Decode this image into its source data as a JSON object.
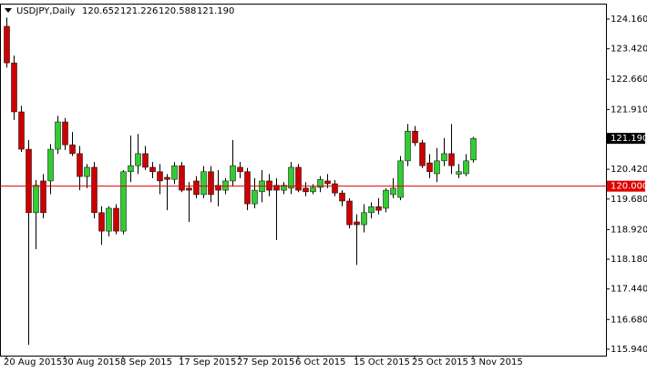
{
  "chart_data": {
    "type": "candlestick",
    "title": "USDJPY,Daily",
    "ohlc_labels": [
      "120.652",
      "121.226",
      "120.588",
      "121.190"
    ],
    "categories": [
      "20 Aug 2015",
      null,
      null,
      null,
      null,
      null,
      null,
      null,
      "30 Aug 2015",
      null,
      null,
      null,
      null,
      null,
      null,
      null,
      "8 Sep 2015",
      null,
      null,
      null,
      null,
      null,
      null,
      null,
      "17 Sep 2015",
      null,
      null,
      null,
      null,
      null,
      null,
      null,
      "27 Sep 2015",
      null,
      null,
      null,
      null,
      null,
      null,
      null,
      "6 Oct 2015",
      null,
      null,
      null,
      null,
      null,
      null,
      null,
      "15 Oct 2015",
      null,
      null,
      null,
      null,
      null,
      null,
      null,
      "25 Oct 2015",
      null,
      null,
      null,
      null,
      null,
      null,
      null,
      "3 Nov 2015"
    ],
    "open": [
      123.98,
      123.07,
      121.85,
      120.92,
      119.34,
      120.13,
      120.13,
      120.92,
      121.6,
      121.03,
      120.81,
      120.24,
      120.47,
      119.34,
      118.88,
      119.45,
      118.88,
      120.36,
      120.51,
      120.81,
      120.47,
      120.36,
      120.22,
      120.17,
      120.51,
      119.95,
      120.13,
      119.79,
      120.36,
      120.02,
      119.9,
      120.13,
      120.47,
      120.36,
      119.56,
      119.86,
      120.13,
      120.02,
      119.9,
      119.95,
      120.47,
      119.95,
      119.86,
      119.97,
      120.13,
      120.06,
      119.83,
      119.63,
      119.11,
      119.04,
      119.34,
      119.49,
      119.45,
      119.79,
      119.72,
      120.63,
      121.37,
      121.08,
      120.58,
      120.31,
      120.63,
      120.81,
      120.3,
      120.31,
      120.652
    ],
    "high": [
      124.2,
      123.25,
      122.0,
      121.15,
      120.15,
      120.3,
      121.05,
      121.75,
      121.7,
      121.35,
      121.0,
      120.55,
      120.6,
      119.5,
      119.5,
      119.55,
      120.4,
      121.26,
      121.3,
      121.0,
      120.6,
      120.55,
      120.3,
      120.6,
      120.6,
      120.1,
      120.25,
      120.5,
      120.5,
      120.4,
      120.2,
      121.15,
      120.6,
      120.45,
      120.2,
      120.4,
      120.3,
      120.2,
      120.1,
      120.6,
      120.55,
      120.1,
      120.05,
      120.25,
      120.3,
      120.15,
      119.9,
      119.7,
      119.3,
      119.55,
      119.6,
      119.7,
      119.95,
      120.2,
      120.75,
      121.55,
      121.5,
      121.15,
      120.8,
      120.95,
      121.2,
      121.55,
      120.55,
      120.8,
      121.226
    ],
    "low": [
      122.95,
      121.65,
      120.85,
      116.05,
      118.43,
      119.2,
      119.8,
      120.8,
      120.9,
      120.75,
      119.9,
      119.95,
      119.2,
      118.54,
      118.75,
      118.8,
      118.8,
      120.1,
      120.3,
      120.4,
      120.2,
      119.8,
      119.4,
      120.05,
      119.85,
      119.11,
      119.7,
      119.7,
      119.6,
      119.5,
      119.8,
      120.0,
      120.2,
      119.4,
      119.45,
      119.6,
      119.75,
      118.66,
      119.8,
      119.8,
      119.85,
      119.75,
      119.8,
      119.85,
      119.95,
      119.75,
      119.5,
      118.95,
      118.04,
      118.85,
      119.2,
      119.3,
      119.35,
      119.7,
      119.65,
      120.5,
      121.0,
      120.45,
      120.2,
      120.1,
      120.5,
      120.3,
      120.2,
      120.25,
      120.588
    ],
    "close": [
      123.07,
      121.85,
      120.92,
      119.34,
      120.02,
      119.34,
      120.92,
      121.6,
      121.03,
      120.81,
      120.24,
      120.47,
      119.34,
      118.88,
      119.45,
      118.88,
      120.36,
      120.51,
      120.81,
      120.47,
      120.36,
      120.13,
      120.17,
      120.51,
      119.9,
      119.9,
      119.79,
      120.36,
      119.79,
      119.9,
      120.13,
      120.51,
      120.36,
      119.56,
      119.9,
      120.13,
      119.9,
      119.9,
      120.02,
      120.47,
      119.9,
      119.86,
      119.97,
      120.17,
      120.06,
      119.83,
      119.63,
      119.04,
      119.04,
      119.34,
      119.49,
      119.4,
      119.9,
      119.95,
      120.63,
      121.37,
      121.08,
      120.51,
      120.36,
      120.63,
      120.81,
      120.51,
      120.36,
      120.63,
      121.19
    ],
    "up_color": "#33cc33",
    "down_color": "#cc0000",
    "wick_color": "#000000",
    "ylim": [
      115.78,
      124.545
    ],
    "yticks": [
      {
        "value": 124.16,
        "label": "124.160"
      },
      {
        "value": 123.42,
        "label": "123.420"
      },
      {
        "value": 122.66,
        "label": "122.660"
      },
      {
        "value": 121.91,
        "label": "121.910"
      },
      {
        "value": 120.42,
        "label": "120.420"
      },
      {
        "value": 119.68,
        "label": "119.680"
      },
      {
        "value": 118.92,
        "label": "118.920"
      },
      {
        "value": 118.18,
        "label": "118.180"
      },
      {
        "value": 117.44,
        "label": "117.440"
      },
      {
        "value": 116.68,
        "label": "116.680"
      },
      {
        "value": 115.94,
        "label": "115.940"
      }
    ],
    "current_price": {
      "value": 121.19,
      "label": "121.190"
    },
    "hline": {
      "value": 120,
      "label": "120.000",
      "color": "#e00000"
    },
    "grid": false
  }
}
